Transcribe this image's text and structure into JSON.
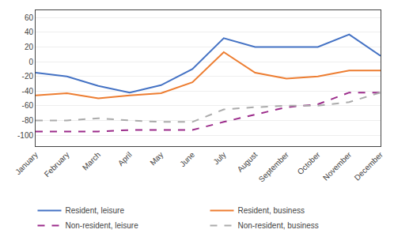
{
  "chart_data": {
    "type": "line",
    "categories": [
      "January",
      "February",
      "March",
      "April",
      "May",
      "June",
      "July",
      "August",
      "September",
      "October",
      "November",
      "December"
    ],
    "series": [
      {
        "name": "Resident, leisure",
        "color": "#4472C4",
        "line_style": "solid",
        "values": [
          -15,
          -20,
          -33,
          -42,
          -32,
          -10,
          32,
          20,
          20,
          20,
          37,
          8
        ]
      },
      {
        "name": "Resident, business",
        "color": "#ED7D31",
        "line_style": "solid",
        "values": [
          -46,
          -43,
          -50,
          -46,
          -43,
          -28,
          13,
          -15,
          -23,
          -20,
          -12,
          -12
        ]
      },
      {
        "name": "Non-resident, leisure",
        "color": "#9B2B8A",
        "line_style": "dashed",
        "values": [
          -95,
          -95,
          -95,
          -93,
          -93,
          -93,
          -82,
          -72,
          -62,
          -58,
          -42,
          -42
        ]
      },
      {
        "name": "Non-resident, business",
        "color": "#ABABAB",
        "line_style": "dashed",
        "values": [
          -80,
          -80,
          -77,
          -80,
          -82,
          -82,
          -65,
          -62,
          -60,
          -60,
          -55,
          -42
        ]
      }
    ],
    "ylim": [
      -115,
      70
    ],
    "yticks": [
      -100,
      -80,
      -60,
      -40,
      -20,
      0,
      20,
      40,
      60
    ],
    "grid": true,
    "legend": "bottom"
  }
}
